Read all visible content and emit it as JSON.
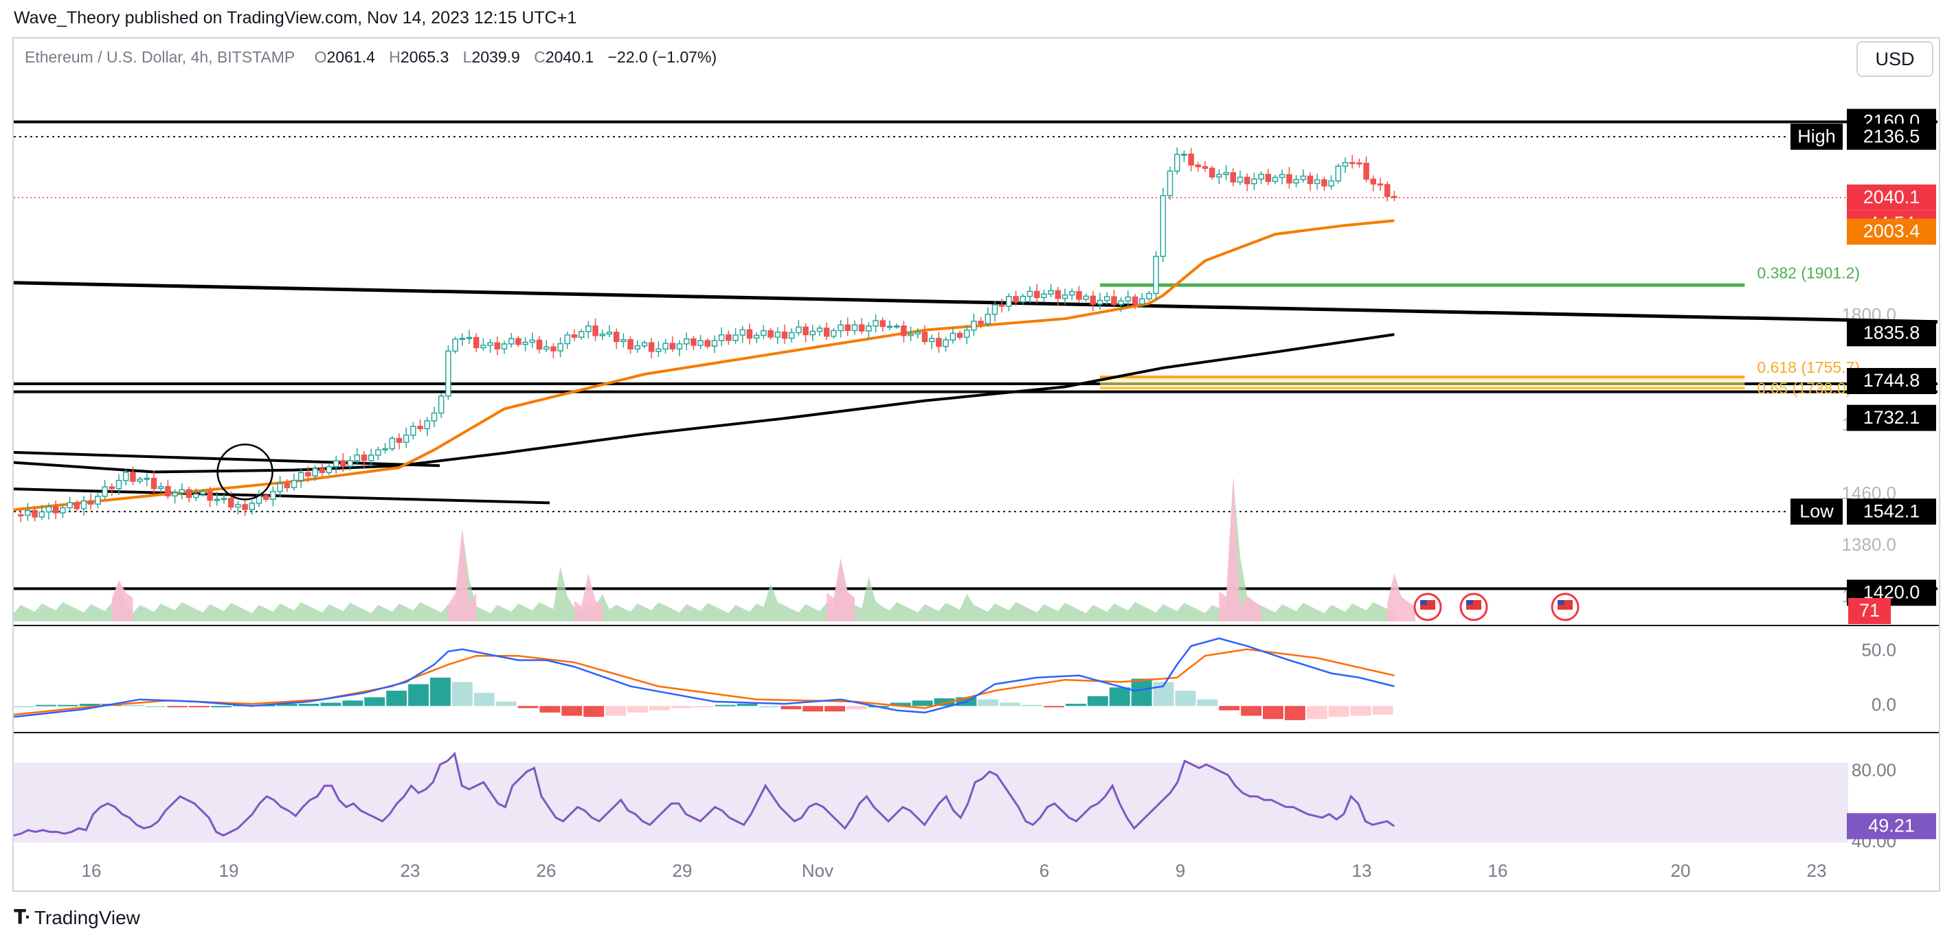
{
  "publisher_line": "Wave_Theory published on TradingView.com, Nov 14, 2023 12:15 UTC+1",
  "legend": {
    "symbol": "Ethereum / U.S. Dollar, 4h, BITSTAMP",
    "open_key": "O",
    "open": "2061.4",
    "high_key": "H",
    "high": "2065.3",
    "low_key": "L",
    "low": "2039.9",
    "close_key": "C",
    "close": "2040.1",
    "change": "−22.0 (−1.07%)"
  },
  "currency_button": "USD",
  "brand": "TradingView",
  "colors": {
    "up": "#26a69a",
    "down": "#ef5350",
    "ema": "#f57c00",
    "sma200": "#000000",
    "fib382": "#4caf50",
    "fib618": "#f9a825",
    "macd": "#2962ff",
    "signal": "#ff6d00",
    "rsi": "#7e57c2",
    "price_label": "#f23645",
    "rsi_band": "#ede7f6"
  },
  "price_axis": {
    "ticks": [
      "1380.0",
      "1460.0",
      "1580.0",
      "1800.0",
      "1200.0"
    ],
    "labels": [
      {
        "name": "resistance-2160-label",
        "text": "2160.0",
        "bg": "#000000",
        "fg": "#ffffff"
      },
      {
        "name": "high-label",
        "text": "2136.5",
        "tag": "High",
        "bg": "#000000",
        "fg": "#ffffff"
      },
      {
        "name": "last-price-label",
        "text": "2040.1",
        "bg": "#f23645",
        "fg": "#ffffff"
      },
      {
        "name": "countdown-label",
        "text": "44:54",
        "bg": "#f23645",
        "fg": "#ffffff"
      },
      {
        "name": "ema-label",
        "text": "2003.4",
        "bg": "#f57c00",
        "fg": "#ffffff"
      },
      {
        "name": "support-1835-label",
        "text": "1835.8",
        "bg": "#000000",
        "fg": "#ffffff"
      },
      {
        "name": "support-1744-label",
        "text": "1744.8",
        "bg": "#000000",
        "fg": "#ffffff"
      },
      {
        "name": "support-1732-label",
        "text": "1732.1",
        "bg": "#000000",
        "fg": "#ffffff"
      },
      {
        "name": "low-label",
        "text": "1542.1",
        "tag": "Low",
        "bg": "#000000",
        "fg": "#ffffff"
      },
      {
        "name": "support-1420-label",
        "text": "1420.0",
        "bg": "#000000",
        "fg": "#ffffff"
      }
    ]
  },
  "volume_label": "71",
  "macd_axis": [
    "50.0",
    "0.0"
  ],
  "rsi_axis": [
    "80.00",
    "40.00"
  ],
  "rsi_value": "49.21",
  "fib_labels": {
    "fib382": "0.382 (1901.2)",
    "fib618": "0.618 (1755.7)",
    "fib65": "0.65 (1738.0)"
  },
  "x_axis": [
    "16",
    "19",
    "23",
    "26",
    "29",
    "Nov",
    "6",
    "9",
    "13",
    "16",
    "20",
    "23"
  ],
  "chart_data": {
    "type": "candlestick",
    "title": "Ethereum / U.S. Dollar, 4h, BITSTAMP",
    "ylim": [
      1330,
      2190
    ],
    "price_levels": [
      2160.0,
      2136.5,
      1835.8,
      1744.8,
      1732.1,
      1542.1,
      1420.0
    ],
    "last_close": 2040.1,
    "close_path": [
      [
        0,
        1537
      ],
      [
        3,
        1540
      ],
      [
        6,
        1545
      ],
      [
        9,
        1550
      ],
      [
        12,
        1568
      ],
      [
        14,
        1585
      ],
      [
        16,
        1598
      ],
      [
        18,
        1592
      ],
      [
        20,
        1582
      ],
      [
        22,
        1575
      ],
      [
        24,
        1572
      ],
      [
        26,
        1570
      ],
      [
        28,
        1565
      ],
      [
        30,
        1555
      ],
      [
        32,
        1550
      ],
      [
        34,
        1557
      ],
      [
        36,
        1568
      ],
      [
        38,
        1580
      ],
      [
        40,
        1590
      ],
      [
        42,
        1602
      ],
      [
        44,
        1612
      ],
      [
        46,
        1618
      ],
      [
        48,
        1623
      ],
      [
        50,
        1628
      ],
      [
        52,
        1632
      ],
      [
        53,
        1645
      ],
      [
        54,
        1655
      ],
      [
        56,
        1665
      ],
      [
        58,
        1680
      ],
      [
        60,
        1692
      ],
      [
        61,
        1730
      ],
      [
        62,
        1795
      ],
      [
        64,
        1820
      ],
      [
        66,
        1810
      ],
      [
        68,
        1805
      ],
      [
        70,
        1808
      ],
      [
        72,
        1812
      ],
      [
        74,
        1806
      ],
      [
        76,
        1800
      ],
      [
        78,
        1810
      ],
      [
        80,
        1825
      ],
      [
        82,
        1830
      ],
      [
        84,
        1822
      ],
      [
        86,
        1815
      ],
      [
        88,
        1808
      ],
      [
        90,
        1805
      ],
      [
        92,
        1800
      ],
      [
        94,
        1805
      ],
      [
        96,
        1808
      ],
      [
        98,
        1810
      ],
      [
        100,
        1815
      ],
      [
        102,
        1820
      ],
      [
        104,
        1824
      ],
      [
        106,
        1820
      ],
      [
        108,
        1822
      ],
      [
        110,
        1825
      ],
      [
        112,
        1830
      ],
      [
        114,
        1828
      ],
      [
        116,
        1825
      ],
      [
        118,
        1830
      ],
      [
        120,
        1835
      ],
      [
        122,
        1838
      ],
      [
        124,
        1842
      ],
      [
        126,
        1830
      ],
      [
        128,
        1822
      ],
      [
        130,
        1815
      ],
      [
        132,
        1812
      ],
      [
        134,
        1820
      ],
      [
        136,
        1830
      ],
      [
        138,
        1845
      ],
      [
        140,
        1862
      ],
      [
        142,
        1880
      ],
      [
        144,
        1885
      ],
      [
        146,
        1888
      ],
      [
        148,
        1886
      ],
      [
        150,
        1884
      ],
      [
        152,
        1882
      ],
      [
        154,
        1879
      ],
      [
        156,
        1878
      ],
      [
        158,
        1876
      ],
      [
        160,
        1876
      ],
      [
        162,
        1880
      ],
      [
        163,
        1950
      ],
      [
        164,
        2040
      ],
      [
        165,
        2090
      ],
      [
        166,
        2110
      ],
      [
        168,
        2098
      ],
      [
        170,
        2080
      ],
      [
        172,
        2075
      ],
      [
        174,
        2068
      ],
      [
        176,
        2070
      ],
      [
        178,
        2072
      ],
      [
        180,
        2072
      ],
      [
        182,
        2068
      ],
      [
        184,
        2066
      ],
      [
        186,
        2065
      ],
      [
        188,
        2068
      ],
      [
        189,
        2085
      ],
      [
        190,
        2102
      ],
      [
        192,
        2088
      ],
      [
        194,
        2060
      ],
      [
        196,
        2045
      ],
      [
        197,
        2040.1
      ]
    ],
    "ema_path": [
      [
        0,
        1545
      ],
      [
        20,
        1568
      ],
      [
        40,
        1590
      ],
      [
        55,
        1612
      ],
      [
        60,
        1640
      ],
      [
        70,
        1705
      ],
      [
        90,
        1760
      ],
      [
        110,
        1795
      ],
      [
        130,
        1830
      ],
      [
        150,
        1848
      ],
      [
        162,
        1872
      ],
      [
        164,
        1885
      ],
      [
        170,
        1940
      ],
      [
        180,
        1982
      ],
      [
        190,
        1996
      ],
      [
        197,
        2003.4
      ]
    ],
    "sma200_path": [
      [
        0,
        1620
      ],
      [
        20,
        1605
      ],
      [
        40,
        1608
      ],
      [
        55,
        1615
      ],
      [
        70,
        1635
      ],
      [
        90,
        1665
      ],
      [
        110,
        1690
      ],
      [
        130,
        1718
      ],
      [
        150,
        1740
      ],
      [
        164,
        1770
      ],
      [
        180,
        1795
      ],
      [
        197,
        1823
      ]
    ],
    "fib_levels": [
      {
        "ratio": 0.382,
        "value": 1901.2
      },
      {
        "ratio": 0.618,
        "value": 1755.7
      },
      {
        "ratio": 0.65,
        "value": 1738.0
      }
    ],
    "x_ticks": [
      "16",
      "19",
      "23",
      "26",
      "29",
      "Nov",
      "6",
      "9",
      "13",
      "16",
      "20",
      "23"
    ],
    "volume_last": 71,
    "macd": {
      "ylim": [
        -20,
        65
      ],
      "ticks": [
        50,
        0
      ],
      "macd_path": [
        [
          0,
          -10
        ],
        [
          10,
          -3
        ],
        [
          18,
          6
        ],
        [
          26,
          4
        ],
        [
          34,
          0
        ],
        [
          42,
          4
        ],
        [
          50,
          12
        ],
        [
          56,
          22
        ],
        [
          60,
          38
        ],
        [
          62,
          50
        ],
        [
          64,
          52
        ],
        [
          68,
          47
        ],
        [
          72,
          42
        ],
        [
          76,
          42
        ],
        [
          80,
          36
        ],
        [
          88,
          18
        ],
        [
          100,
          4
        ],
        [
          110,
          2
        ],
        [
          118,
          6
        ],
        [
          126,
          -4
        ],
        [
          130,
          -6
        ],
        [
          136,
          4
        ],
        [
          140,
          20
        ],
        [
          146,
          26
        ],
        [
          152,
          28
        ],
        [
          160,
          14
        ],
        [
          164,
          18
        ],
        [
          166,
          38
        ],
        [
          168,
          55
        ],
        [
          172,
          62
        ],
        [
          176,
          55
        ],
        [
          182,
          42
        ],
        [
          188,
          30
        ],
        [
          192,
          26
        ],
        [
          197,
          18
        ]
      ],
      "signal_path": [
        [
          0,
          -8
        ],
        [
          12,
          0
        ],
        [
          22,
          5
        ],
        [
          34,
          2
        ],
        [
          44,
          6
        ],
        [
          54,
          18
        ],
        [
          62,
          38
        ],
        [
          66,
          46
        ],
        [
          72,
          46
        ],
        [
          80,
          40
        ],
        [
          92,
          18
        ],
        [
          106,
          6
        ],
        [
          120,
          4
        ],
        [
          130,
          -2
        ],
        [
          140,
          14
        ],
        [
          150,
          24
        ],
        [
          158,
          22
        ],
        [
          166,
          26
        ],
        [
          170,
          46
        ],
        [
          176,
          52
        ],
        [
          186,
          44
        ],
        [
          197,
          28
        ]
      ],
      "histogram": [
        0,
        1,
        1,
        2,
        2,
        1,
        0,
        -1,
        -1,
        0,
        1,
        1,
        2,
        2,
        3,
        5,
        8,
        14,
        20,
        26,
        22,
        12,
        4,
        -2,
        -6,
        -9,
        -10,
        -9,
        -6,
        -4,
        -2,
        -1,
        1,
        2,
        0,
        -3,
        -5,
        -5,
        -3,
        0,
        3,
        5,
        7,
        8,
        6,
        3,
        1,
        -1,
        2,
        9,
        17,
        25,
        22,
        14,
        6,
        -4,
        -9,
        -12,
        -13,
        -12,
        -10,
        -9,
        -8
      ]
    },
    "rsi": {
      "ylim": [
        35,
        95
      ],
      "band": [
        30,
        70
      ],
      "ticks": [
        80,
        40
      ],
      "values": [
        44,
        45,
        47,
        46,
        47,
        46,
        46,
        45,
        46,
        48,
        47,
        56,
        60,
        62,
        60,
        56,
        54,
        50,
        48,
        49,
        52,
        58,
        62,
        66,
        64,
        62,
        58,
        54,
        46,
        44,
        46,
        48,
        52,
        56,
        62,
        66,
        64,
        60,
        58,
        55,
        60,
        64,
        66,
        72,
        72,
        64,
        60,
        62,
        58,
        56,
        54,
        52,
        56,
        62,
        66,
        72,
        68,
        70,
        74,
        84,
        86,
        90,
        72,
        70,
        72,
        74,
        68,
        62,
        60,
        72,
        76,
        80,
        82,
        66,
        60,
        54,
        52,
        56,
        60,
        58,
        54,
        52,
        56,
        60,
        64,
        58,
        56,
        52,
        50,
        54,
        58,
        62,
        62,
        56,
        54,
        52,
        56,
        60,
        58,
        54,
        52,
        50,
        56,
        64,
        72,
        66,
        60,
        56,
        52,
        54,
        60,
        62,
        60,
        56,
        52,
        48,
        54,
        62,
        66,
        60,
        56,
        52,
        56,
        60,
        58,
        54,
        50,
        56,
        62,
        66,
        58,
        54,
        62,
        74,
        76,
        80,
        78,
        72,
        66,
        60,
        52,
        50,
        54,
        60,
        62,
        58,
        54,
        52,
        56,
        60,
        62,
        66,
        72,
        62,
        54,
        48,
        52,
        56,
        60,
        64,
        68,
        74,
        86,
        84,
        82,
        84,
        82,
        80,
        78,
        72,
        68,
        66,
        66,
        64,
        64,
        62,
        60,
        60,
        58,
        56,
        55,
        54,
        56,
        53,
        56,
        66,
        62,
        52,
        50,
        51,
        52,
        49.21
      ]
    }
  }
}
